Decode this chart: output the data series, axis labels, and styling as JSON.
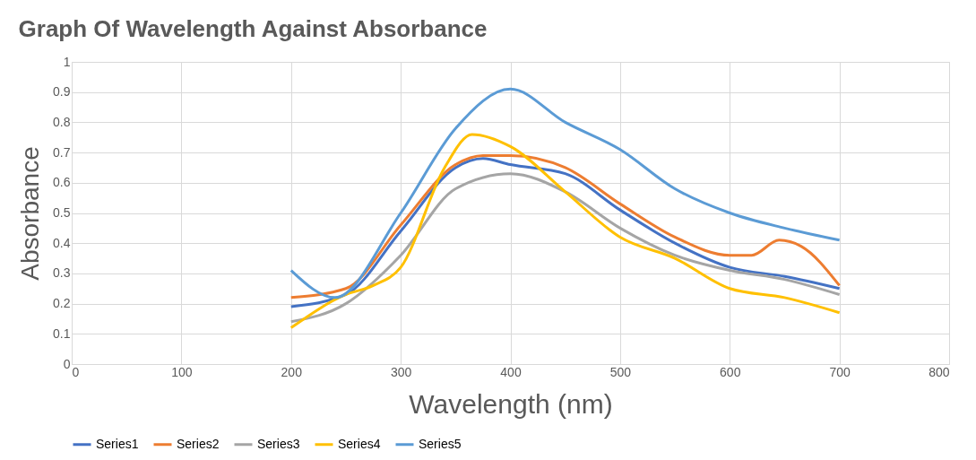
{
  "chart_data": {
    "type": "line",
    "title": "Graph Of Wavelength Against Absorbance",
    "xlabel": "Wavelength (nm)",
    "ylabel": "Absorbance",
    "xlim": [
      0,
      800
    ],
    "xticks": [
      0,
      100,
      200,
      300,
      400,
      500,
      600,
      700,
      800
    ],
    "ylim": [
      0,
      1
    ],
    "yticks": [
      0,
      0.1,
      0.2,
      0.3,
      0.4,
      0.5,
      0.6,
      0.7,
      0.8,
      0.9,
      1
    ],
    "grid": true,
    "legend": "bottom",
    "marker": "none",
    "line_style": "solid",
    "series": [
      {
        "name": "Series1",
        "color": "#4472c4",
        "x": [
          200,
          250,
          300,
          350,
          375,
          400,
          450,
          500,
          550,
          600,
          650,
          700
        ],
        "values": [
          0.19,
          0.23,
          0.44,
          0.65,
          0.68,
          0.66,
          0.63,
          0.51,
          0.4,
          0.32,
          0.29,
          0.25
        ]
      },
      {
        "name": "Series2",
        "color": "#ed7d31",
        "x": [
          200,
          250,
          300,
          350,
          375,
          400,
          450,
          500,
          550,
          600,
          620,
          645,
          665,
          700
        ],
        "values": [
          0.22,
          0.25,
          0.46,
          0.66,
          0.69,
          0.69,
          0.65,
          0.53,
          0.42,
          0.36,
          0.36,
          0.41,
          0.39,
          0.26
        ]
      },
      {
        "name": "Series3",
        "color": "#a5a5a5",
        "x": [
          200,
          250,
          300,
          350,
          400,
          450,
          500,
          550,
          600,
          650,
          700
        ],
        "values": [
          0.14,
          0.2,
          0.36,
          0.58,
          0.63,
          0.57,
          0.45,
          0.36,
          0.31,
          0.28,
          0.23
        ]
      },
      {
        "name": "Series4",
        "color": "#ffc000",
        "x": [
          200,
          250,
          275,
          300,
          340,
          365,
          400,
          450,
          500,
          550,
          600,
          650,
          700
        ],
        "values": [
          0.12,
          0.23,
          0.26,
          0.32,
          0.65,
          0.76,
          0.72,
          0.57,
          0.42,
          0.35,
          0.25,
          0.22,
          0.17
        ]
      },
      {
        "name": "Series5",
        "color": "#5b9bd5",
        "x": [
          200,
          240,
          300,
          350,
          400,
          450,
          500,
          550,
          600,
          650,
          700
        ],
        "values": [
          0.31,
          0.22,
          0.5,
          0.78,
          0.91,
          0.8,
          0.71,
          0.58,
          0.5,
          0.45,
          0.41
        ]
      }
    ]
  }
}
